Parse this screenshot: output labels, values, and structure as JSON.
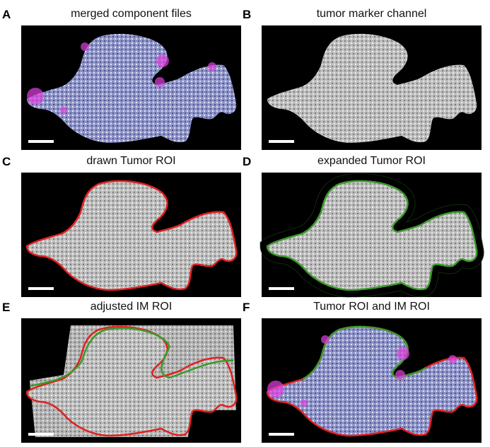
{
  "panels": [
    {
      "letter": "A",
      "title": "merged component files"
    },
    {
      "letter": "B",
      "title": "tumor marker channel"
    },
    {
      "letter": "C",
      "title": "drawn Tumor ROI"
    },
    {
      "letter": "D",
      "title": "expanded Tumor ROI"
    },
    {
      "letter": "E",
      "title": "adjusted IM ROI"
    },
    {
      "letter": "F",
      "title": "Tumor ROI and IM ROI"
    }
  ]
}
